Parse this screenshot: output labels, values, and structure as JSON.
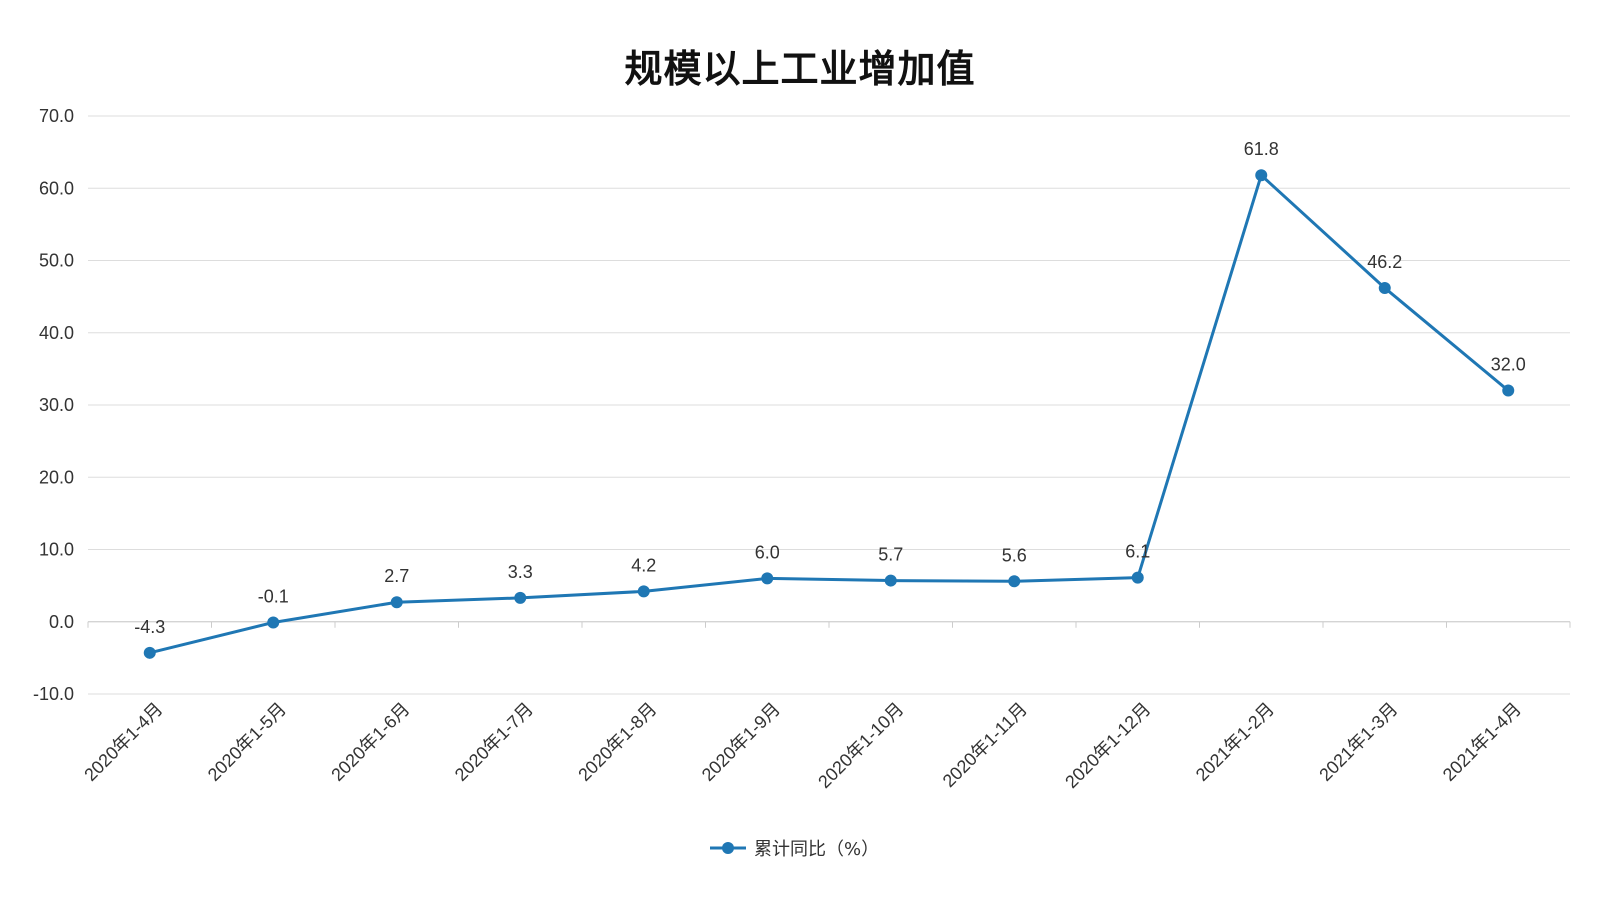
{
  "chart_data": {
    "type": "line",
    "title": "规模以上工业增加值",
    "categories": [
      "2020年1-4月",
      "2020年1-5月",
      "2020年1-6月",
      "2020年1-7月",
      "2020年1-8月",
      "2020年1-9月",
      "2020年1-10月",
      "2020年1-11月",
      "2020年1-12月",
      "2021年1-2月",
      "2021年1-3月",
      "2021年1-4月"
    ],
    "series": [
      {
        "name": "累计同比（%）",
        "values": [
          -4.3,
          -0.1,
          2.7,
          3.3,
          4.2,
          6.0,
          5.7,
          5.6,
          6.1,
          61.8,
          46.2,
          32.0
        ],
        "color": "#1f77b4"
      }
    ],
    "y_ticks": [
      "70.0",
      "60.0",
      "50.0",
      "40.0",
      "30.0",
      "20.0",
      "10.0",
      "0.0",
      "-10.0"
    ],
    "ylim": [
      -10,
      70
    ],
    "xlabel": "",
    "ylabel": "",
    "grid": true,
    "legend_position": "bottom-center",
    "gridline_color": "#dddddd",
    "axis_color": "#cccccc"
  }
}
